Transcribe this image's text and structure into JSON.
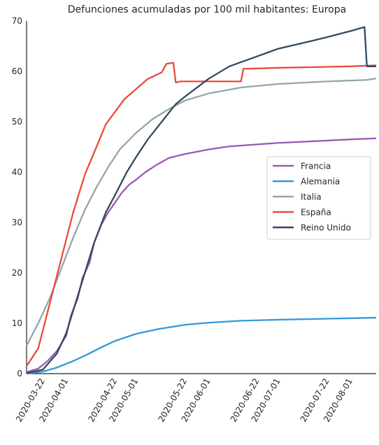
{
  "chart_data": {
    "type": "line",
    "title": "Defunciones acumuladas por 100 mil habitantes: Europa",
    "xlabel": "",
    "ylabel": "",
    "xlim": [
      "2020-03-15",
      "2020-08-12"
    ],
    "ylim": [
      0,
      70
    ],
    "grid": false,
    "legend_position": "center-right",
    "y_ticks": [
      0,
      10,
      20,
      30,
      40,
      50,
      60,
      70
    ],
    "x_ticks": [
      "2020-03-22",
      "2020-04-01",
      "2020-04-22",
      "2020-05-01",
      "2020-05-22",
      "2020-06-01",
      "2020-06-22",
      "2020-07-01",
      "2020-07-22",
      "2020-08-01"
    ],
    "series": [
      {
        "name": "Francia",
        "color": "#9b59b6",
        "points": [
          [
            "2020-03-15",
            0.3
          ],
          [
            "2020-03-20",
            1.0
          ],
          [
            "2020-03-24",
            2.5
          ],
          [
            "2020-03-28",
            4.5
          ],
          [
            "2020-04-01",
            7.5
          ],
          [
            "2020-04-03",
            11.5
          ],
          [
            "2020-04-06",
            15.0
          ],
          [
            "2020-04-08",
            19.0
          ],
          [
            "2020-04-11",
            22.0
          ],
          [
            "2020-04-13",
            26.0
          ],
          [
            "2020-04-16",
            29.5
          ],
          [
            "2020-04-19",
            32.0
          ],
          [
            "2020-04-22",
            34.0
          ],
          [
            "2020-04-25",
            36.0
          ],
          [
            "2020-04-28",
            37.5
          ],
          [
            "2020-05-01",
            38.5
          ],
          [
            "2020-05-05",
            40.0
          ],
          [
            "2020-05-10",
            41.5
          ],
          [
            "2020-05-15",
            42.8
          ],
          [
            "2020-05-22",
            43.6
          ],
          [
            "2020-06-01",
            44.5
          ],
          [
            "2020-06-10",
            45.1
          ],
          [
            "2020-06-22",
            45.5
          ],
          [
            "2020-07-01",
            45.8
          ],
          [
            "2020-07-15",
            46.1
          ],
          [
            "2020-08-01",
            46.5
          ],
          [
            "2020-08-12",
            46.7
          ]
        ]
      },
      {
        "name": "Alemania",
        "color": "#3498db",
        "points": [
          [
            "2020-03-15",
            0.0
          ],
          [
            "2020-03-22",
            0.4
          ],
          [
            "2020-03-28",
            1.2
          ],
          [
            "2020-04-04",
            2.5
          ],
          [
            "2020-04-10",
            3.8
          ],
          [
            "2020-04-16",
            5.2
          ],
          [
            "2020-04-22",
            6.5
          ],
          [
            "2020-05-01",
            7.9
          ],
          [
            "2020-05-10",
            8.8
          ],
          [
            "2020-05-22",
            9.7
          ],
          [
            "2020-06-01",
            10.1
          ],
          [
            "2020-06-15",
            10.5
          ],
          [
            "2020-07-01",
            10.7
          ],
          [
            "2020-07-22",
            10.9
          ],
          [
            "2020-08-12",
            11.1
          ]
        ]
      },
      {
        "name": "Italia",
        "color": "#95a5a6",
        "points": [
          [
            "2020-03-15",
            5.5
          ],
          [
            "2020-03-20",
            10.0
          ],
          [
            "2020-03-25",
            15.0
          ],
          [
            "2020-03-30",
            21.0
          ],
          [
            "2020-04-04",
            27.0
          ],
          [
            "2020-04-09",
            32.5
          ],
          [
            "2020-04-14",
            37.0
          ],
          [
            "2020-04-19",
            41.0
          ],
          [
            "2020-04-24",
            44.5
          ],
          [
            "2020-05-01",
            47.8
          ],
          [
            "2020-05-08",
            50.5
          ],
          [
            "2020-05-15",
            52.5
          ],
          [
            "2020-05-22",
            54.2
          ],
          [
            "2020-06-01",
            55.6
          ],
          [
            "2020-06-15",
            56.8
          ],
          [
            "2020-07-01",
            57.5
          ],
          [
            "2020-07-22",
            58.0
          ],
          [
            "2020-08-08",
            58.3
          ],
          [
            "2020-08-12",
            58.6
          ]
        ]
      },
      {
        "name": "España",
        "color": "#e74c3c",
        "points": [
          [
            "2020-03-15",
            1.5
          ],
          [
            "2020-03-20",
            5.0
          ],
          [
            "2020-03-25",
            14.0
          ],
          [
            "2020-03-30",
            23.0
          ],
          [
            "2020-04-04",
            32.0
          ],
          [
            "2020-04-09",
            39.5
          ],
          [
            "2020-04-14",
            45.0
          ],
          [
            "2020-04-18",
            49.5
          ],
          [
            "2020-04-22",
            52.0
          ],
          [
            "2020-04-26",
            54.5
          ],
          [
            "2020-05-01",
            56.5
          ],
          [
            "2020-05-06",
            58.5
          ],
          [
            "2020-05-12",
            59.8
          ],
          [
            "2020-05-14",
            61.5
          ],
          [
            "2020-05-17",
            61.7
          ],
          [
            "2020-05-18",
            57.8
          ],
          [
            "2020-05-20",
            58.0
          ],
          [
            "2020-06-15",
            58.0
          ],
          [
            "2020-06-16",
            60.5
          ],
          [
            "2020-07-01",
            60.7
          ],
          [
            "2020-07-22",
            60.9
          ],
          [
            "2020-08-01",
            61.0
          ],
          [
            "2020-08-12",
            61.2
          ]
        ]
      },
      {
        "name": "Reino Unido",
        "color": "#34495e",
        "points": [
          [
            "2020-03-15",
            0.1
          ],
          [
            "2020-03-22",
            0.8
          ],
          [
            "2020-03-28",
            4.0
          ],
          [
            "2020-04-01",
            8.0
          ],
          [
            "2020-04-05",
            14.0
          ],
          [
            "2020-04-09",
            20.0
          ],
          [
            "2020-04-13",
            26.0
          ],
          [
            "2020-04-18",
            32.0
          ],
          [
            "2020-04-22",
            35.5
          ],
          [
            "2020-04-27",
            40.0
          ],
          [
            "2020-05-01",
            43.0
          ],
          [
            "2020-05-06",
            46.5
          ],
          [
            "2020-05-12",
            50.0
          ],
          [
            "2020-05-18",
            53.5
          ],
          [
            "2020-05-22",
            55.0
          ],
          [
            "2020-06-01",
            58.5
          ],
          [
            "2020-06-10",
            61.0
          ],
          [
            "2020-06-22",
            63.0
          ],
          [
            "2020-07-01",
            64.5
          ],
          [
            "2020-07-15",
            66.0
          ],
          [
            "2020-07-22",
            66.8
          ],
          [
            "2020-08-01",
            68.0
          ],
          [
            "2020-08-07",
            68.8
          ],
          [
            "2020-08-08",
            61.0
          ],
          [
            "2020-08-12",
            61.0
          ]
        ]
      }
    ]
  }
}
